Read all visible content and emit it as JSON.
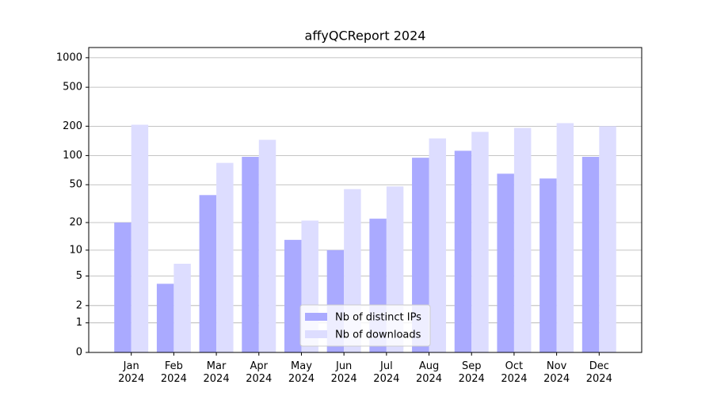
{
  "chart_data": {
    "type": "bar",
    "title": "affyQCReport 2024",
    "categories": [
      "Jan\n2024",
      "Feb\n2024",
      "Mar\n2024",
      "Apr\n2024",
      "May\n2024",
      "Jun\n2024",
      "Jul\n2024",
      "Aug\n2024",
      "Sep\n2024",
      "Oct\n2024",
      "Nov\n2024",
      "Dec\n2024"
    ],
    "series": [
      {
        "name": "Nb of distinct IPs",
        "color": "#aaaaff",
        "values": [
          20,
          4,
          39,
          97,
          13,
          10,
          22,
          95,
          112,
          65,
          58,
          97
        ]
      },
      {
        "name": "Nb of downloads",
        "color": "#ddddff",
        "values": [
          207,
          7,
          84,
          145,
          21,
          45,
          48,
          150,
          175,
          192,
          215,
          200
        ]
      }
    ],
    "yscale": "log1p",
    "ylim": [
      0,
      1270
    ],
    "yticks": [
      0,
      1,
      2,
      5,
      10,
      20,
      50,
      100,
      200,
      500,
      1000
    ],
    "grid": true,
    "legend": "lower center"
  }
}
